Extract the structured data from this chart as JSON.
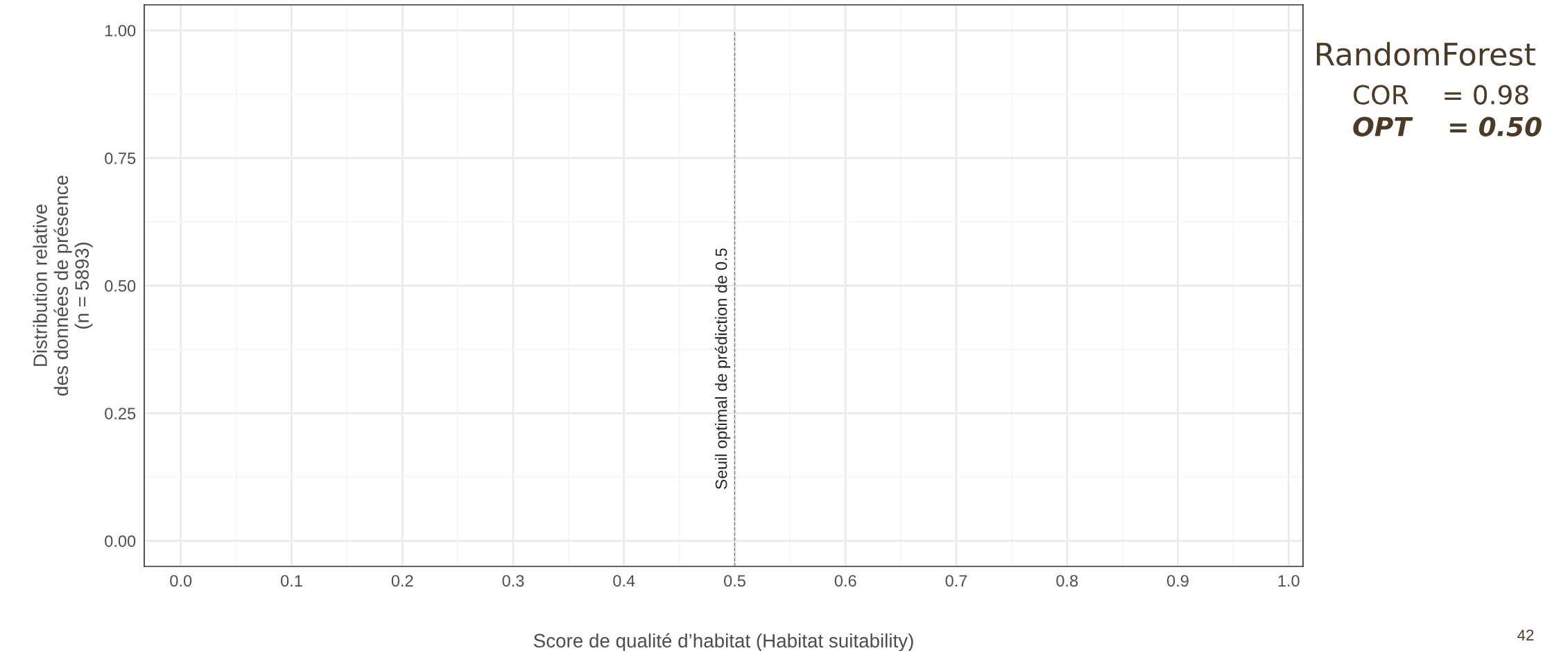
{
  "chart_data": {
    "type": "line",
    "xlabel": "Score de qualité d’habitat (Habitat suitability)",
    "ylabel": "Distribution relative\ndes données de présence\n(n = 5893)",
    "xlim": [
      -0.033,
      1.013
    ],
    "xticks": [
      {
        "value": 0,
        "label": "0.0"
      },
      0.1,
      0.2,
      0.3,
      0.4,
      0.5,
      0.6,
      0.7,
      0.8,
      0.9,
      {
        "value": 1,
        "label": "1.0"
      }
    ],
    "ylim": [
      -0.05,
      1.05
    ],
    "yticks": [
      {
        "value": 0,
        "label": "0.00"
      },
      0.25,
      {
        "value": 0.5,
        "label": "0.50"
      },
      {
        "value": 0.75,
        "label": "0.75"
      },
      {
        "value": 1,
        "label": "1.00"
      }
    ],
    "grid": true,
    "ref_lines": [
      {
        "axis": "x",
        "value": 0.5,
        "label": "Seuil optimal de prédiction de 0.5",
        "color": "#808080",
        "line_style": "dashed"
      }
    ],
    "annotations": [
      "RandomForest",
      "COR    = 0.98",
      "OPT    = 0.50",
      "42"
    ]
  }
}
